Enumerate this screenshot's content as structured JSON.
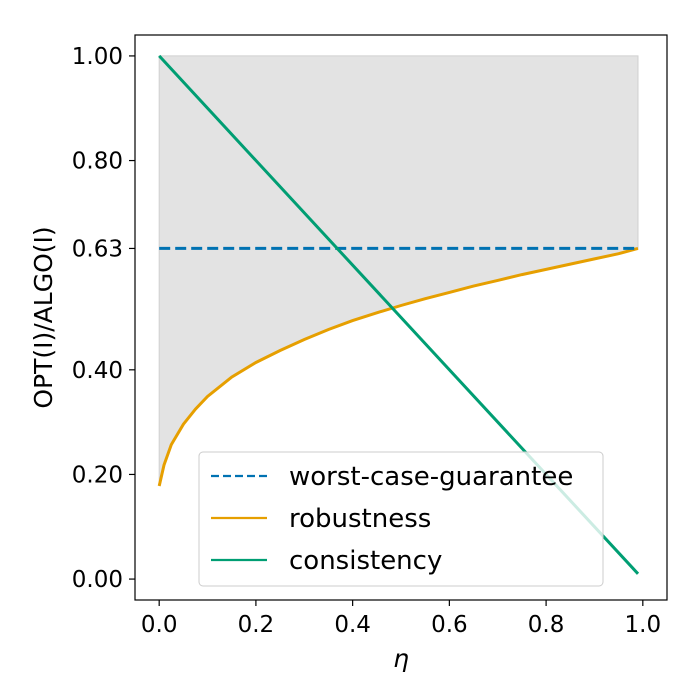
{
  "chart_data": {
    "type": "line",
    "title": "",
    "xlabel": "η",
    "ylabel": "OPT(I)/ALGO(I)",
    "xlim": [
      -0.05,
      1.05
    ],
    "ylim": [
      -0.04,
      1.04
    ],
    "x_ticks": [
      0.0,
      0.2,
      0.4,
      0.6,
      0.8,
      1.0
    ],
    "x_tick_labels": [
      "0.0",
      "0.2",
      "0.4",
      "0.6",
      "0.8",
      "1.0"
    ],
    "y_ticks": [
      0.0,
      0.2,
      0.4,
      0.632,
      0.8,
      1.0
    ],
    "y_tick_labels": [
      "0.00",
      "0.20",
      "0.40",
      "0.63",
      "0.80",
      "1.00"
    ],
    "grid": false,
    "legend_position": "lower-center",
    "series": [
      {
        "name": "worst-case-guarantee",
        "style": "dashed",
        "color": "#0072b2",
        "x": [
          0.0,
          0.99
        ],
        "y": [
          0.632,
          0.632
        ]
      },
      {
        "name": "robustness",
        "style": "solid",
        "color": "#e69f00",
        "x": [
          0.0,
          0.01,
          0.025,
          0.05,
          0.075,
          0.1,
          0.15,
          0.2,
          0.25,
          0.3,
          0.35,
          0.4,
          0.45,
          0.5,
          0.55,
          0.6,
          0.65,
          0.7,
          0.75,
          0.8,
          0.85,
          0.9,
          0.95,
          0.99
        ],
        "y": [
          0.178,
          0.218,
          0.257,
          0.296,
          0.325,
          0.349,
          0.386,
          0.414,
          0.437,
          0.458,
          0.477,
          0.494,
          0.509,
          0.523,
          0.536,
          0.548,
          0.56,
          0.571,
          0.582,
          0.592,
          0.602,
          0.612,
          0.622,
          0.632
        ]
      },
      {
        "name": "consistency",
        "style": "solid",
        "color": "#009e73",
        "x": [
          0.0,
          0.99
        ],
        "y": [
          1.0,
          0.01
        ]
      }
    ],
    "shaded_region": {
      "color": "#e3e3e3",
      "between": "robustness-and-1.00",
      "x_range": [
        0.0,
        0.99
      ]
    }
  }
}
